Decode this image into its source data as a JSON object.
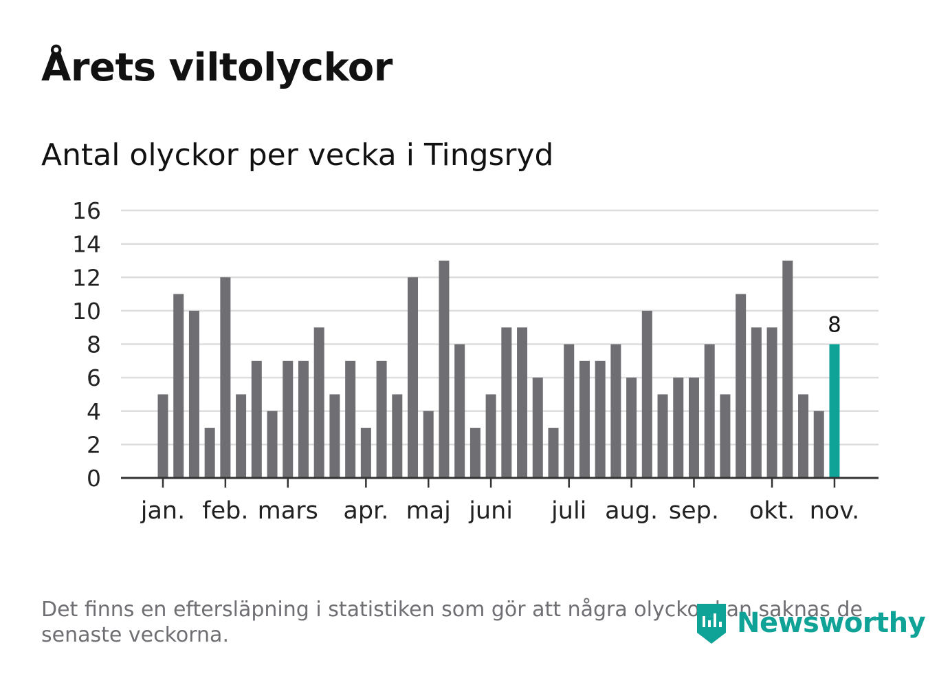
{
  "header": {
    "title": "Årets viltolyckor",
    "subtitle": "Antal olyckor per vecka i Tingsryd"
  },
  "footer": {
    "note": "Det finns en eftersläpning i statistiken som gör att några olyckor kan saknas de senaste veckorna.",
    "brand": "Newsworthy"
  },
  "colors": {
    "bar": "#6e6e73",
    "highlight": "#0fa397",
    "grid": "#dddddd",
    "axis": "#333333",
    "text": "#111111"
  },
  "chart_data": {
    "type": "bar",
    "title": "Antal olyckor per vecka i Tingsryd",
    "xlabel": "",
    "ylabel": "",
    "ylim": [
      0,
      16
    ],
    "yticks": [
      0,
      2,
      4,
      6,
      8,
      10,
      12,
      14,
      16
    ],
    "weeks": [
      1,
      2,
      3,
      4,
      5,
      6,
      7,
      8,
      9,
      10,
      11,
      12,
      13,
      14,
      15,
      16,
      17,
      18,
      19,
      20,
      21,
      22,
      23,
      24,
      25,
      26,
      27,
      28,
      29,
      30,
      31,
      32,
      33,
      34,
      35,
      36,
      37,
      38,
      39,
      40,
      41,
      42,
      43,
      44
    ],
    "values": [
      5,
      11,
      10,
      3,
      12,
      5,
      7,
      4,
      7,
      7,
      9,
      5,
      7,
      3,
      7,
      5,
      12,
      4,
      13,
      8,
      3,
      5,
      9,
      9,
      6,
      3,
      8,
      7,
      7,
      8,
      6,
      10,
      5,
      6,
      6,
      8,
      5,
      11,
      9,
      9,
      13,
      5,
      4,
      8
    ],
    "highlight_index": 43,
    "highlight_label": "8",
    "month_ticks": [
      {
        "label": "jan.",
        "week": 1
      },
      {
        "label": "feb.",
        "week": 5
      },
      {
        "label": "mars",
        "week": 9
      },
      {
        "label": "apr.",
        "week": 14
      },
      {
        "label": "maj",
        "week": 18
      },
      {
        "label": "juni",
        "week": 22
      },
      {
        "label": "juli",
        "week": 27
      },
      {
        "label": "aug.",
        "week": 31
      },
      {
        "label": "sep.",
        "week": 35
      },
      {
        "label": "okt.",
        "week": 40
      },
      {
        "label": "nov.",
        "week": 44
      }
    ]
  }
}
